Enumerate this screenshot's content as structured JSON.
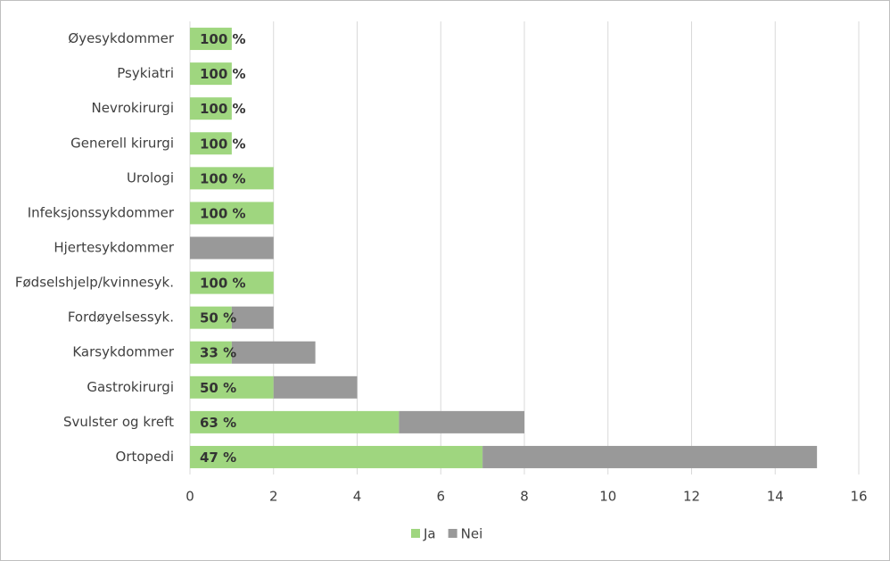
{
  "chart_data": {
    "type": "stacked-bar-horizontal",
    "categories": [
      "Øyesykdommer",
      "Psykiatri",
      "Nevrokirurgi",
      "Generell kirurgi",
      "Urologi",
      "Infeksjonssykdommer",
      "Hjertesykdommer",
      "Fødselshjelp/kvinnesyk.",
      "Fordøyelsessyk.",
      "Karsykdommer",
      "Gastrokirurgi",
      "Svulster og kreft",
      "Ortopedi"
    ],
    "series": [
      {
        "name": "Ja",
        "color": "#9fd67f",
        "values": [
          1,
          1,
          1,
          1,
          2,
          2,
          0,
          2,
          1,
          1,
          2,
          5,
          7
        ]
      },
      {
        "name": "Nei",
        "color": "#999999",
        "values": [
          0,
          0,
          0,
          0,
          0,
          0,
          2,
          0,
          1,
          2,
          2,
          3,
          8
        ]
      }
    ],
    "shares": {
      "values": [
        100,
        100,
        100,
        100,
        100,
        100,
        null,
        100,
        50,
        33,
        50,
        63,
        47
      ],
      "value_labels": [
        "100 %",
        "100 %",
        "100 %",
        "100 %",
        "100 %",
        "100 %",
        null,
        "100 %",
        "50 %",
        "33 %",
        "50 %",
        "63 %",
        "47 %"
      ]
    },
    "xlim": [
      0,
      16
    ],
    "xticks": [
      0,
      2,
      4,
      6,
      8,
      10,
      12,
      14,
      16
    ],
    "grid": true,
    "legend": "bottom"
  }
}
